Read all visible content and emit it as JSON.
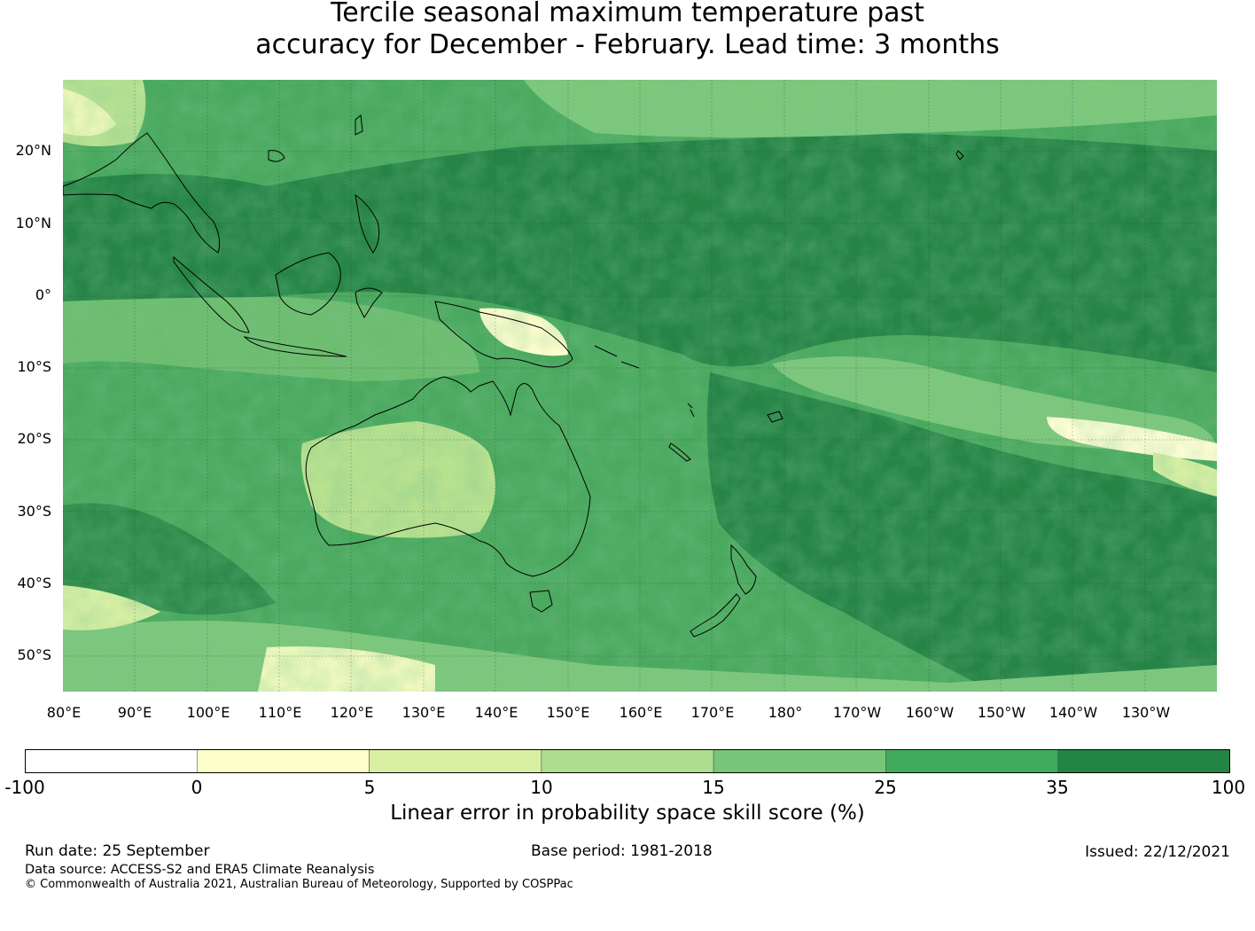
{
  "title": {
    "line1": "Tercile seasonal maximum temperature past",
    "line2": "accuracy for December - February. Lead time: 3 months"
  },
  "map": {
    "region": "Western Pacific, Maritime Continent and Australia",
    "lon_range": [
      80,
      240
    ],
    "lat_range": [
      -55,
      30
    ],
    "lat_labels": [
      "20°N",
      "10°N",
      "0°",
      "10°S",
      "20°S",
      "30°S",
      "40°S",
      "50°S"
    ],
    "lon_labels": [
      "80°E",
      "90°E",
      "100°E",
      "110°E",
      "120°E",
      "130°E",
      "140°E",
      "150°E",
      "160°E",
      "170°E",
      "180°",
      "170°W",
      "160°W",
      "150°W",
      "140°W",
      "130°W"
    ],
    "background_color": "#41a35a",
    "grid": true
  },
  "colorbar": {
    "ticks": [
      "-100",
      "0",
      "5",
      "10",
      "15",
      "25",
      "35",
      "100"
    ],
    "colors": [
      "#ffffff",
      "#ffffcc",
      "#d9f0a3",
      "#addd8e",
      "#78c679",
      "#41ab5d",
      "#238443"
    ],
    "label": "Linear error in probability space skill score (%)"
  },
  "footer": {
    "run_date": "Run date: 25 September",
    "base_period": "Base period: 1981-2018",
    "issued": "Issued: 22/12/2021",
    "data_source": "Data source: ACCESS-S2 and ERA5 Climate Reanalysis",
    "copyright": "© Commonwealth of Australia 2021, Australian Bureau of Meteorology, Supported by COSPPac"
  }
}
